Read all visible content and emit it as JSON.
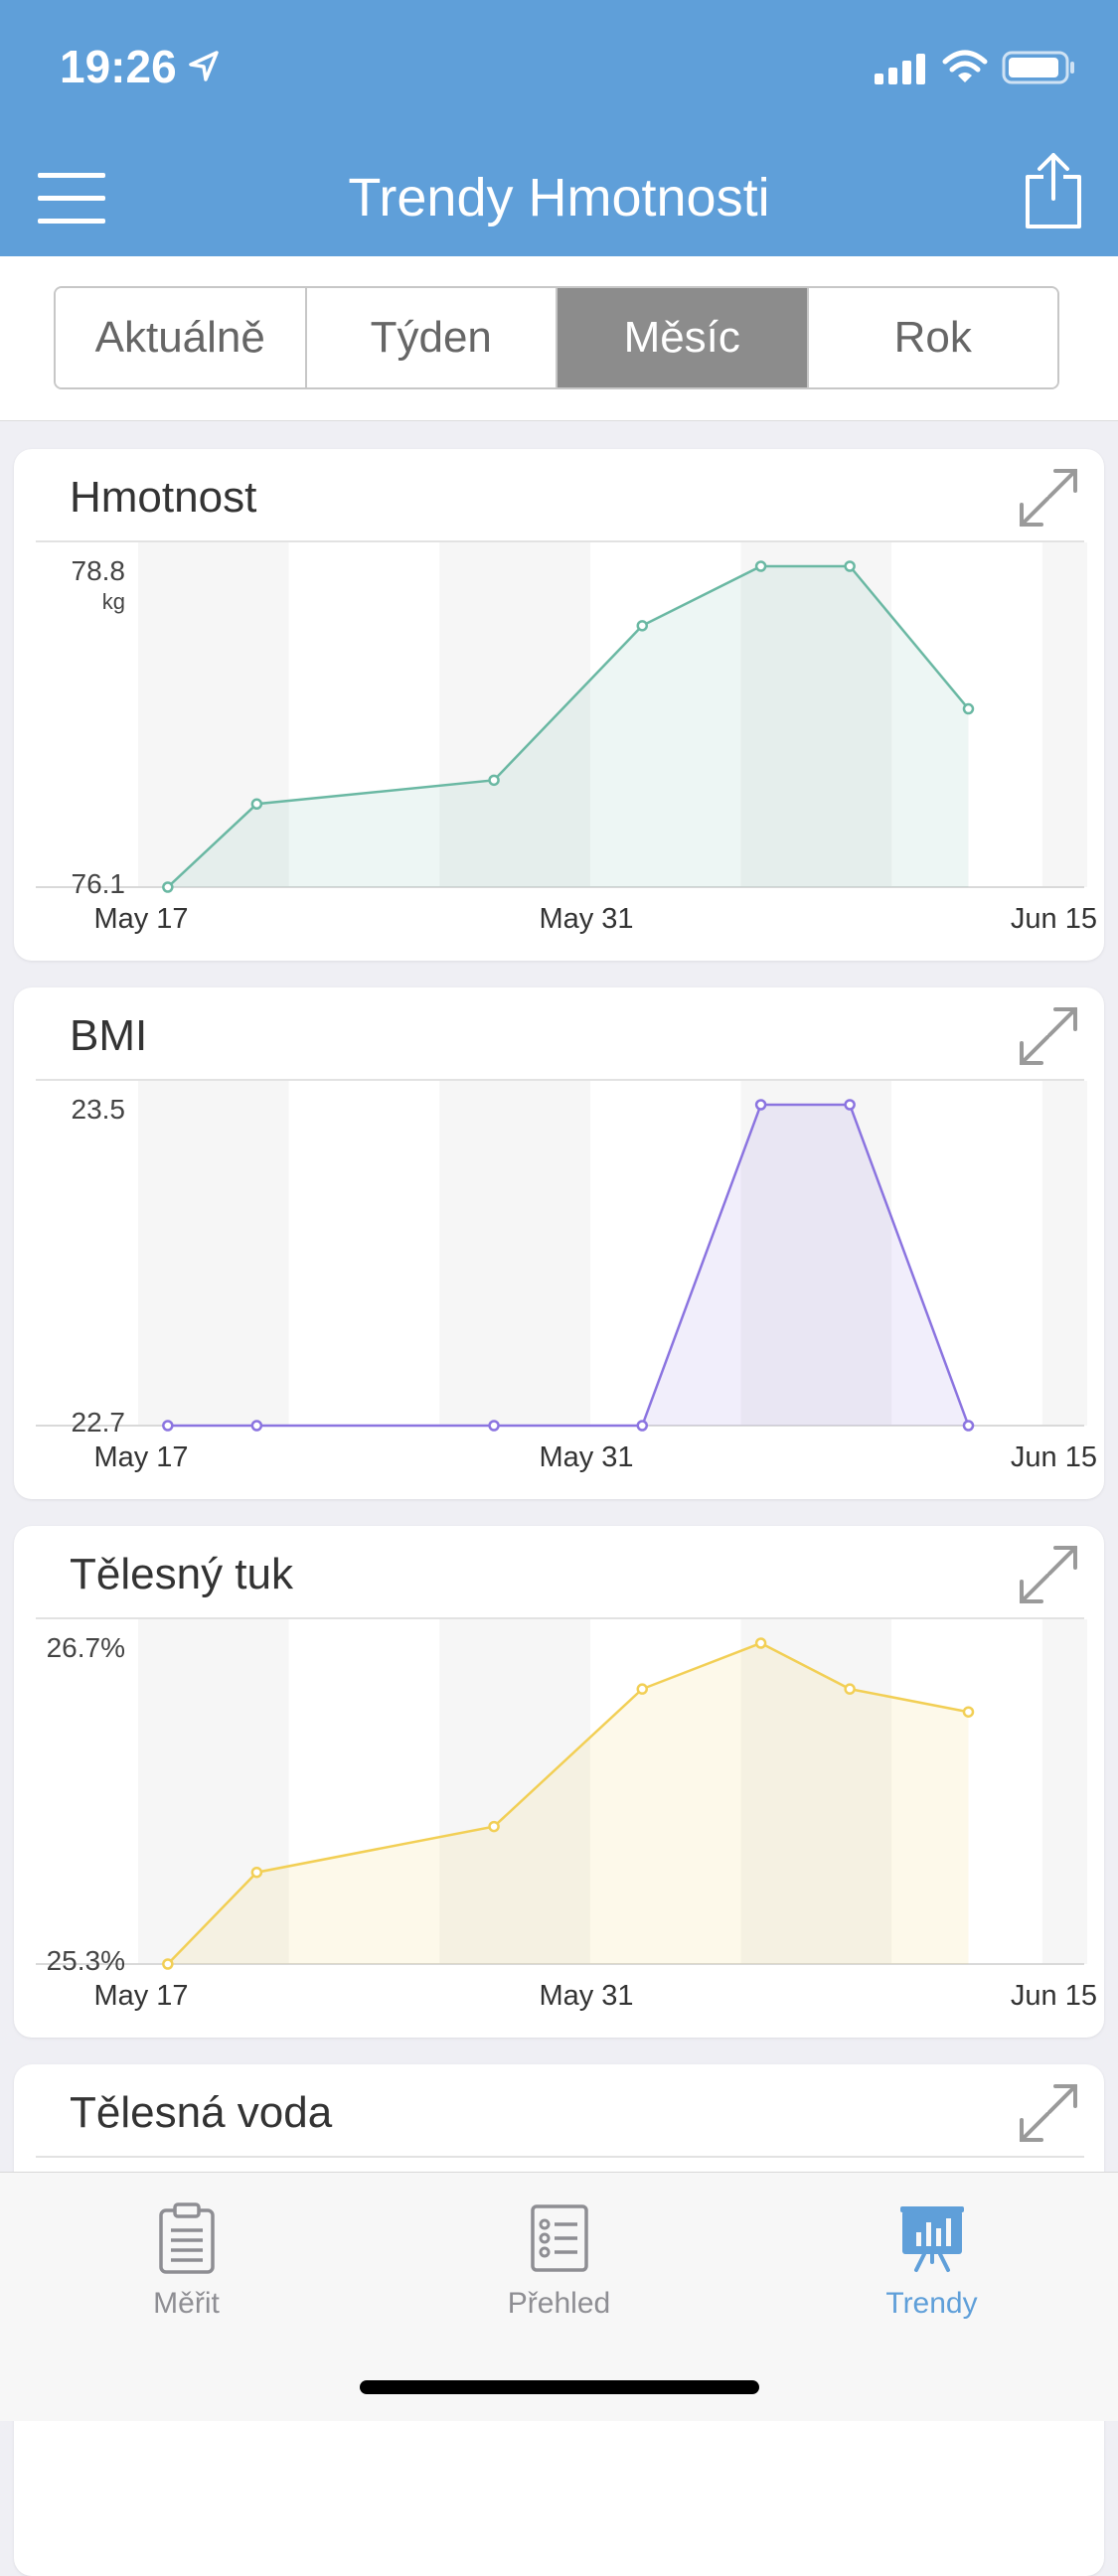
{
  "status": {
    "time": "19:26"
  },
  "header": {
    "title": "Trendy Hmotnosti"
  },
  "segments": [
    {
      "label": "Aktuálně",
      "active": false
    },
    {
      "label": "Týden",
      "active": false
    },
    {
      "label": "Měsíc",
      "active": true
    },
    {
      "label": "Rok",
      "active": false
    }
  ],
  "cards": [
    {
      "title": "Hmotnost"
    },
    {
      "title": "BMI"
    },
    {
      "title": "Tělesný tuk"
    },
    {
      "title": "Tělesná voda"
    }
  ],
  "chart_data": [
    {
      "type": "area",
      "title": "Hmotnost",
      "x": [
        "May 17",
        "May 20",
        "May 28",
        "Jun 2",
        "Jun 6",
        "Jun 9",
        "Jun 13"
      ],
      "values": [
        76.1,
        76.8,
        77.0,
        78.3,
        78.8,
        78.8,
        77.6
      ],
      "ylabels": [
        "78.8",
        "76.1"
      ],
      "yunit": "kg",
      "ylim": [
        76.1,
        78.8
      ],
      "xticks": [
        "May 17",
        "May 31",
        "Jun 15"
      ],
      "color": "#6ab8a3"
    },
    {
      "type": "area",
      "title": "BMI",
      "x": [
        "May 17",
        "May 20",
        "May 28",
        "Jun 2",
        "Jun 6",
        "Jun 9",
        "Jun 13"
      ],
      "values": [
        22.7,
        22.7,
        22.7,
        22.7,
        23.5,
        23.5,
        22.7
      ],
      "ylabels": [
        "23.5",
        "22.7"
      ],
      "ylim": [
        22.7,
        23.5
      ],
      "xticks": [
        "May 17",
        "May 31",
        "Jun 15"
      ],
      "color": "#8b74e0"
    },
    {
      "type": "area",
      "title": "Tělesný tuk",
      "x": [
        "May 17",
        "May 20",
        "May 28",
        "Jun 2",
        "Jun 6",
        "Jun 9",
        "Jun 13"
      ],
      "values": [
        25.3,
        25.7,
        25.9,
        26.5,
        26.7,
        26.5,
        26.4
      ],
      "ylabels": [
        "26.7%",
        "25.3%"
      ],
      "ylim": [
        25.3,
        26.7
      ],
      "xticks": [
        "May 17",
        "May 31",
        "Jun 15"
      ],
      "color": "#f2cf55"
    }
  ],
  "tabbar": [
    {
      "label": "Měřit",
      "icon": "clipboard-icon",
      "active": false
    },
    {
      "label": "Přehled",
      "icon": "list-icon",
      "active": false
    },
    {
      "label": "Trendy",
      "icon": "trends-icon",
      "active": true
    }
  ]
}
